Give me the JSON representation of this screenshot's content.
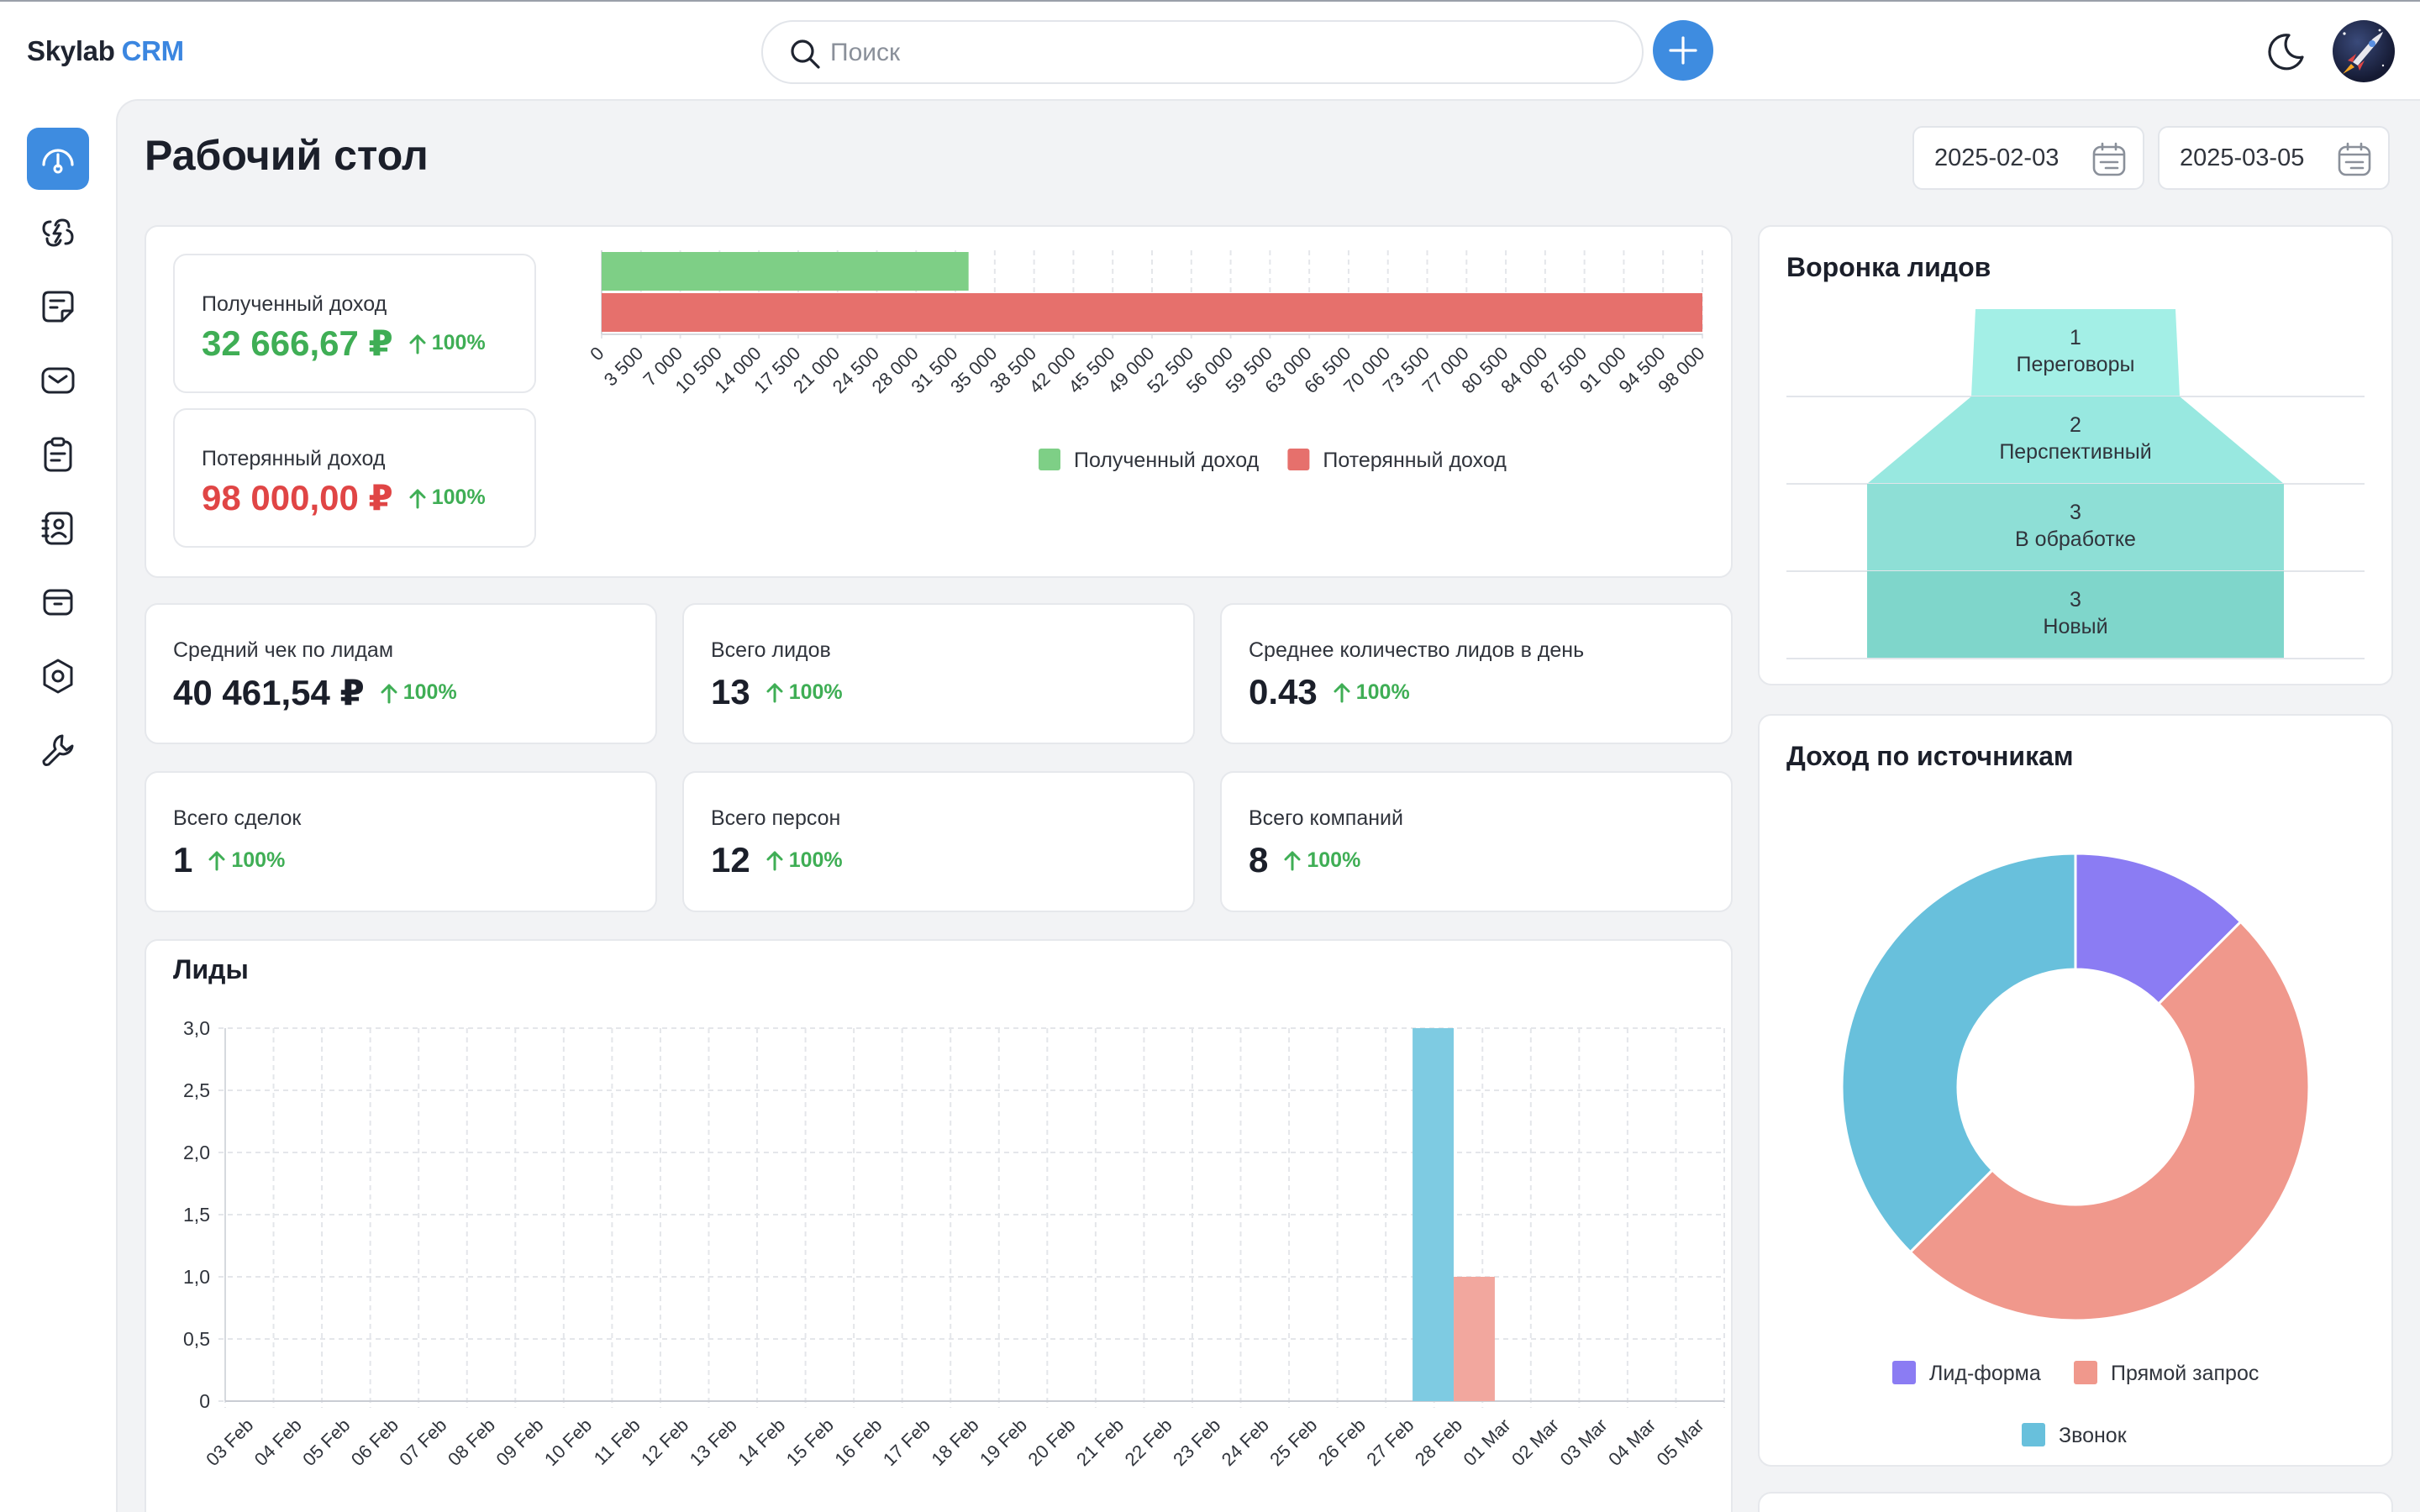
{
  "app": {
    "brand": "Skylab",
    "brand_accent": "CRM"
  },
  "search": {
    "placeholder": "Поиск"
  },
  "page": {
    "title": "Рабочий стол"
  },
  "dates": {
    "from": "2025-02-03",
    "to": "2025-03-05"
  },
  "sidebar": {
    "items": [
      {
        "icon": "dashboard-icon",
        "active": true
      },
      {
        "icon": "integrations-icon"
      },
      {
        "icon": "notes-icon"
      },
      {
        "icon": "mail-icon"
      },
      {
        "icon": "tasks-icon"
      },
      {
        "icon": "contacts-icon"
      },
      {
        "icon": "archive-icon"
      },
      {
        "icon": "settings-icon"
      },
      {
        "icon": "tools-icon"
      }
    ]
  },
  "income": {
    "received_label": "Полученный доход",
    "received_value": "32 666,67 ₽",
    "received_trend": "100%",
    "lost_label": "Потерянный доход",
    "lost_value": "98 000,00 ₽",
    "lost_trend": "100%"
  },
  "stats": {
    "avg_check_label": "Средний чек по лидам",
    "avg_check_value": "40 461,54 ₽",
    "avg_check_trend": "100%",
    "total_leads_label": "Всего лидов",
    "total_leads_value": "13",
    "total_leads_trend": "100%",
    "avg_leads_label": "Среднее количество лидов в день",
    "avg_leads_value": "0.43",
    "avg_leads_trend": "100%",
    "deals_label": "Всего сделок",
    "deals_value": "1",
    "deals_trend": "100%",
    "persons_label": "Всего персон",
    "persons_value": "12",
    "persons_trend": "100%",
    "companies_label": "Всего компаний",
    "companies_value": "8",
    "companies_trend": "100%"
  },
  "funnel": {
    "title": "Воронка лидов",
    "stages": [
      {
        "count": "1",
        "name": "Переговоры"
      },
      {
        "count": "2",
        "name": "Перспективный"
      },
      {
        "count": "3",
        "name": "В обработке"
      },
      {
        "count": "3",
        "name": "Новый"
      }
    ]
  },
  "leads_chart_title": "Лиды",
  "sources_title": "Доход по источникам",
  "colors": {
    "accent": "#3e8ce0",
    "received": "#7ecf86",
    "lost": "#e6706c",
    "trend_up": "#3fae55"
  },
  "chart_data": [
    {
      "type": "bar",
      "orientation": "horizontal",
      "x_ticks": [
        "0",
        "3 500",
        "7 000",
        "10 500",
        "14 000",
        "17 500",
        "21 000",
        "24 500",
        "28 000",
        "31 500",
        "35 000",
        "38 500",
        "42 000",
        "45 500",
        "49 000",
        "52 500",
        "56 000",
        "59 500",
        "63 000",
        "66 500",
        "70 000",
        "73 500",
        "77 000",
        "80 500",
        "84 000",
        "87 500",
        "91 000",
        "94 500",
        "98 000"
      ],
      "xlim": [
        0,
        98000
      ],
      "series": [
        {
          "name": "Полученный доход",
          "values": [
            32666.67
          ],
          "color": "#7ecf86"
        },
        {
          "name": "Потерянный доход",
          "values": [
            98000
          ],
          "color": "#e6706c"
        }
      ],
      "grid": true,
      "legend": "bottom"
    },
    {
      "type": "bar",
      "title": "Лиды",
      "categories": [
        "03 Feb",
        "04 Feb",
        "05 Feb",
        "06 Feb",
        "07 Feb",
        "08 Feb",
        "09 Feb",
        "10 Feb",
        "11 Feb",
        "12 Feb",
        "13 Feb",
        "14 Feb",
        "15 Feb",
        "16 Feb",
        "17 Feb",
        "18 Feb",
        "19 Feb",
        "20 Feb",
        "21 Feb",
        "22 Feb",
        "23 Feb",
        "24 Feb",
        "25 Feb",
        "26 Feb",
        "27 Feb",
        "28 Feb",
        "01 Mar",
        "02 Mar",
        "03 Mar",
        "04 Mar",
        "05 Mar"
      ],
      "y_ticks": [
        "0",
        "0,5",
        "1,0",
        "1,5",
        "2,0",
        "2,5",
        "3,0"
      ],
      "ylim": [
        0,
        3
      ],
      "series": [
        {
          "color": "#7ecbe2",
          "values": [
            0,
            0,
            0,
            0,
            0,
            0,
            0,
            0,
            0,
            0,
            0,
            0,
            0,
            0,
            0,
            0,
            0,
            0,
            0,
            0,
            0,
            0,
            0,
            0,
            3,
            0,
            0,
            0,
            0,
            0,
            0
          ]
        },
        {
          "color": "#f2a79e",
          "values": [
            0,
            0,
            0,
            0,
            0,
            0,
            0,
            0,
            0,
            0,
            0,
            0,
            0,
            0,
            0,
            0,
            0,
            0,
            0,
            0,
            0,
            0,
            0,
            0,
            0,
            1,
            0,
            0,
            0,
            0,
            0
          ]
        }
      ],
      "grid": true,
      "legend": "bottom"
    },
    {
      "type": "pie",
      "subtype": "donut",
      "title": "Доход по источникам",
      "labels": [
        "Лид-форма",
        "Прямой запрос",
        "Звонок"
      ],
      "values": [
        12.5,
        50,
        37.5
      ],
      "colors": [
        "#8b7cf3",
        "#f0988c",
        "#68c0dc"
      ],
      "legend": "bottom"
    }
  ]
}
